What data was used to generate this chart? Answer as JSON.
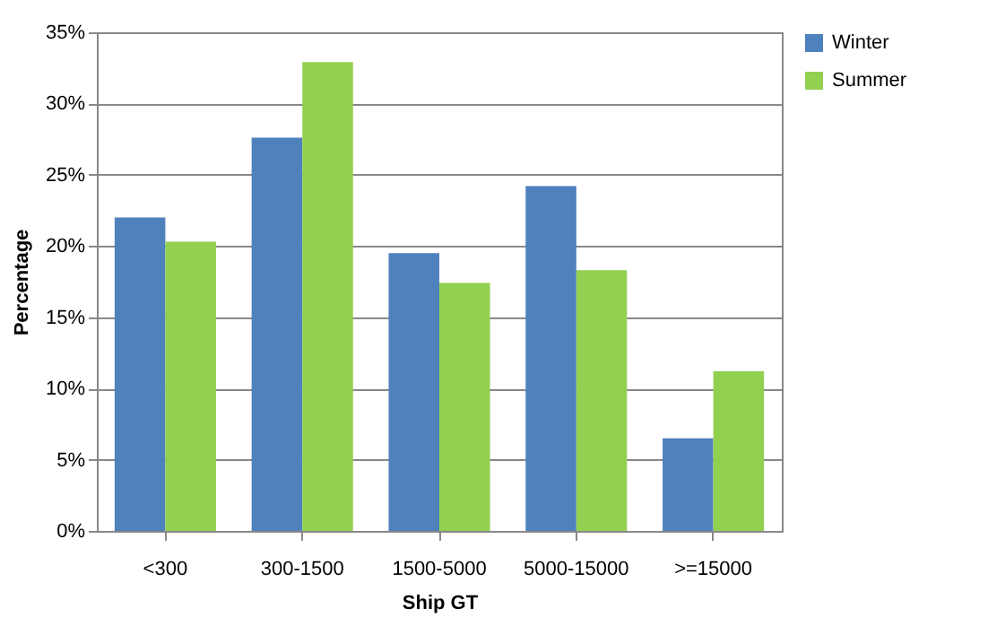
{
  "chart_data": {
    "type": "bar",
    "xlabel": "Ship GT",
    "ylabel": "Percentage",
    "categories": [
      "<300",
      "300-1500",
      "1500-5000",
      "5000-15000",
      ">=15000"
    ],
    "series": [
      {
        "name": "Winter",
        "color": "#4f81bd",
        "values": [
          22.0,
          27.6,
          19.5,
          24.2,
          6.5
        ]
      },
      {
        "name": "Summer",
        "color": "#92d050",
        "values": [
          20.3,
          32.9,
          17.4,
          18.3,
          11.2
        ]
      }
    ],
    "ylim": [
      0,
      35
    ],
    "yticks": [
      {
        "value": 0,
        "label": "0%"
      },
      {
        "value": 5,
        "label": "5%"
      },
      {
        "value": 10,
        "label": "10%"
      },
      {
        "value": 15,
        "label": "15%"
      },
      {
        "value": 20,
        "label": "20%"
      },
      {
        "value": 25,
        "label": "25%"
      },
      {
        "value": 30,
        "label": "30%"
      },
      {
        "value": 35,
        "label": "35%"
      }
    ],
    "grid": "y",
    "legend": "right"
  }
}
